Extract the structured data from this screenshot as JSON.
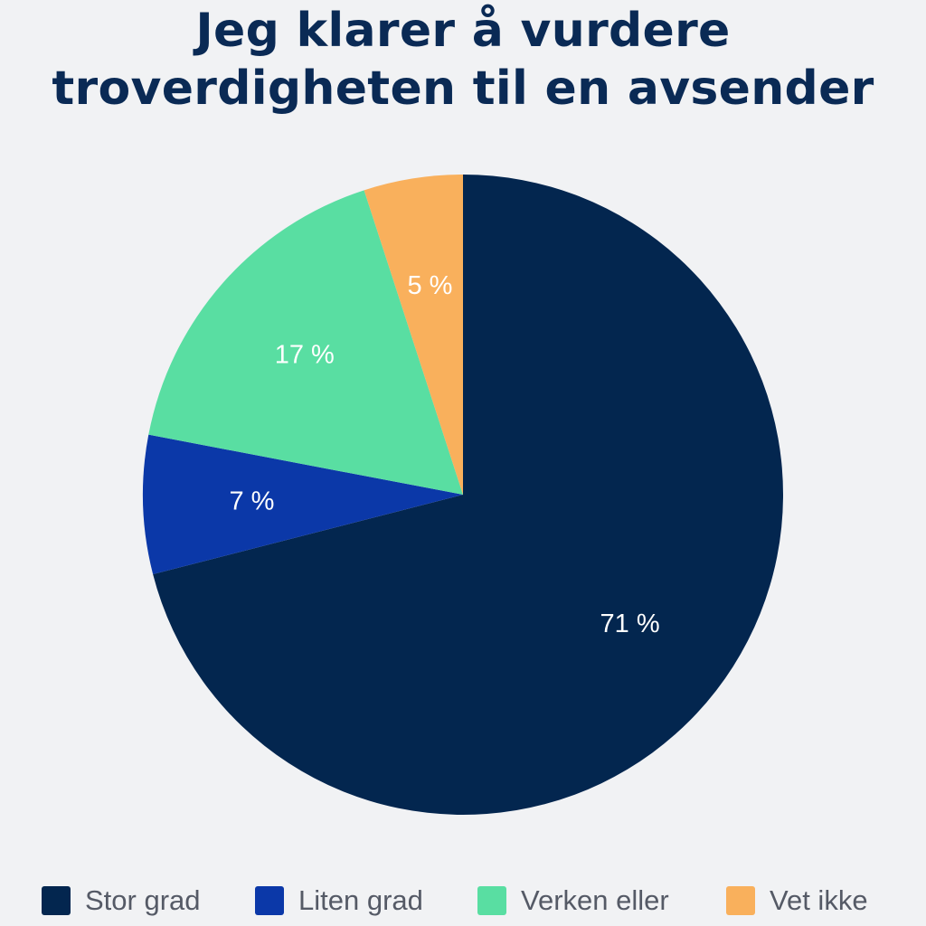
{
  "chart_data": {
    "type": "pie",
    "title_lines": [
      "Jeg klarer å vurdere",
      "troverdigheten til en avsender"
    ],
    "slices": [
      {
        "name": "Stor grad",
        "value": 71,
        "label": "71 %",
        "color": "#03264f"
      },
      {
        "name": "Liten grad",
        "value": 7,
        "label": "7 %",
        "color": "#0b38a8"
      },
      {
        "name": "Verken eller",
        "value": 17,
        "label": "17 %",
        "color": "#59dea2"
      },
      {
        "name": "Vet ikke",
        "value": 5,
        "label": "5 %",
        "color": "#f9b05c"
      }
    ],
    "legend_position": "bottom"
  }
}
